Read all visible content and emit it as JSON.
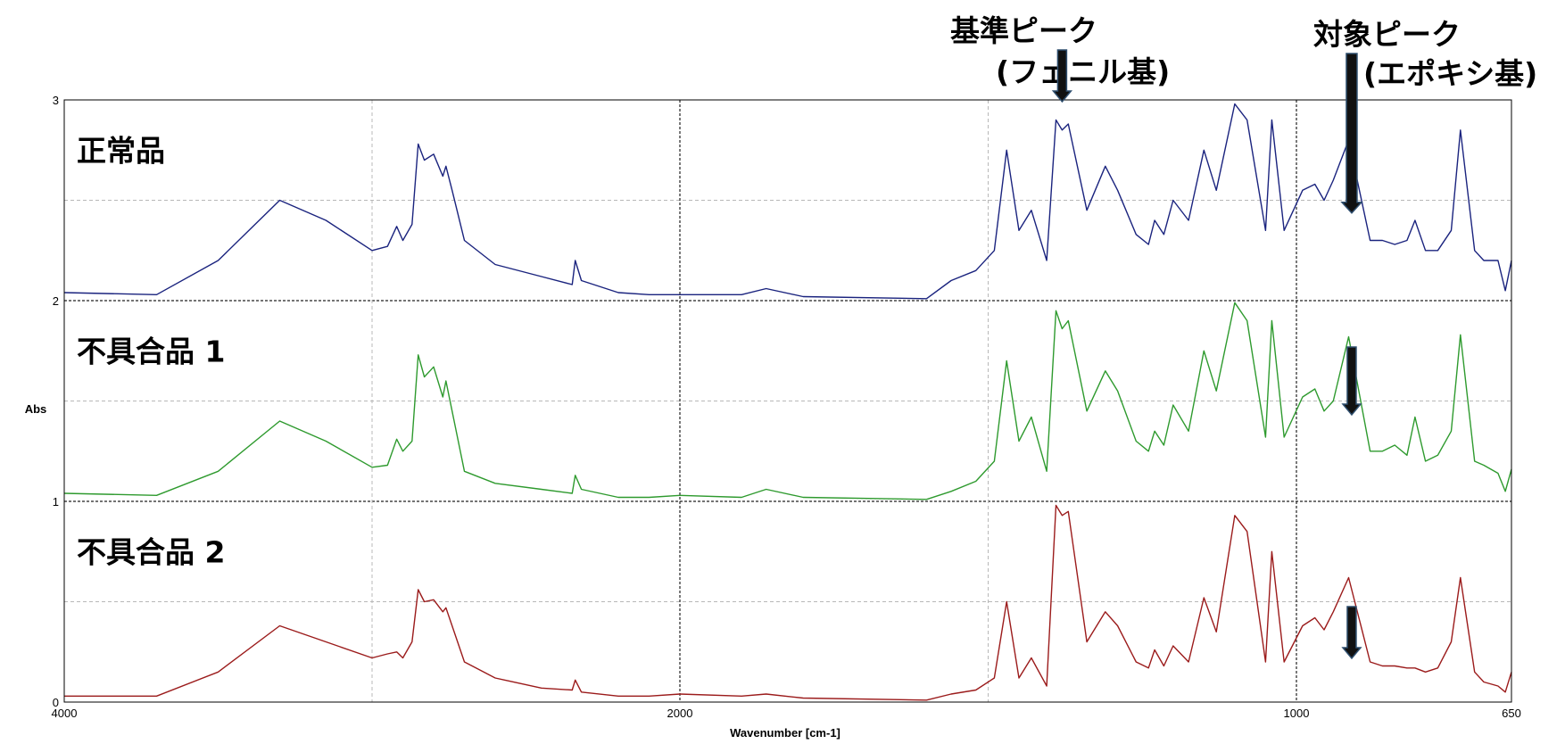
{
  "chart_data": {
    "type": "line",
    "title": "",
    "xlabel": "Wavenumber [cm-1]",
    "ylabel": "Abs",
    "xlim": [
      4000,
      650
    ],
    "ylim": [
      0,
      3
    ],
    "x_reversed": true,
    "x_ticks": [
      "4000",
      "2000",
      "1000",
      "650"
    ],
    "y_ticks": [
      "0",
      "1",
      "2",
      "3"
    ],
    "grid": true,
    "series": [
      {
        "name": "正常品",
        "color": "#1a237e",
        "points": [
          [
            4000,
            2.04
          ],
          [
            3700,
            2.03
          ],
          [
            3500,
            2.2
          ],
          [
            3300,
            2.5
          ],
          [
            3150,
            2.4
          ],
          [
            3000,
            2.25
          ],
          [
            2950,
            2.27
          ],
          [
            2920,
            2.37
          ],
          [
            2900,
            2.3
          ],
          [
            2870,
            2.38
          ],
          [
            2850,
            2.78
          ],
          [
            2830,
            2.7
          ],
          [
            2800,
            2.73
          ],
          [
            2770,
            2.62
          ],
          [
            2760,
            2.67
          ],
          [
            2740,
            2.55
          ],
          [
            2700,
            2.3
          ],
          [
            2600,
            2.18
          ],
          [
            2450,
            2.12
          ],
          [
            2350,
            2.08
          ],
          [
            2340,
            2.2
          ],
          [
            2320,
            2.1
          ],
          [
            2200,
            2.04
          ],
          [
            2100,
            2.03
          ],
          [
            2000,
            2.03
          ],
          [
            1900,
            2.03
          ],
          [
            1860,
            2.06
          ],
          [
            1800,
            2.02
          ],
          [
            1600,
            2.01
          ],
          [
            1560,
            2.1
          ],
          [
            1520,
            2.15
          ],
          [
            1490,
            2.25
          ],
          [
            1470,
            2.75
          ],
          [
            1450,
            2.35
          ],
          [
            1430,
            2.45
          ],
          [
            1405,
            2.2
          ],
          [
            1390,
            2.9
          ],
          [
            1380,
            2.85
          ],
          [
            1370,
            2.88
          ],
          [
            1340,
            2.45
          ],
          [
            1310,
            2.67
          ],
          [
            1290,
            2.55
          ],
          [
            1260,
            2.33
          ],
          [
            1240,
            2.28
          ],
          [
            1230,
            2.4
          ],
          [
            1215,
            2.33
          ],
          [
            1200,
            2.5
          ],
          [
            1175,
            2.4
          ],
          [
            1150,
            2.75
          ],
          [
            1130,
            2.55
          ],
          [
            1100,
            2.98
          ],
          [
            1080,
            2.9
          ],
          [
            1050,
            2.35
          ],
          [
            1040,
            2.9
          ],
          [
            1020,
            2.35
          ],
          [
            990,
            2.55
          ],
          [
            970,
            2.58
          ],
          [
            955,
            2.5
          ],
          [
            940,
            2.6
          ],
          [
            915,
            2.8
          ],
          [
            880,
            2.3
          ],
          [
            860,
            2.3
          ],
          [
            840,
            2.28
          ],
          [
            820,
            2.3
          ],
          [
            807,
            2.4
          ],
          [
            790,
            2.25
          ],
          [
            770,
            2.25
          ],
          [
            748,
            2.35
          ],
          [
            733,
            2.85
          ],
          [
            710,
            2.25
          ],
          [
            695,
            2.2
          ],
          [
            672,
            2.2
          ],
          [
            660,
            2.05
          ],
          [
            650,
            2.2
          ]
        ]
      },
      {
        "name": "不具合品 1",
        "color": "#2e9a2e",
        "points": [
          [
            4000,
            1.04
          ],
          [
            3700,
            1.03
          ],
          [
            3500,
            1.15
          ],
          [
            3300,
            1.4
          ],
          [
            3150,
            1.3
          ],
          [
            3000,
            1.17
          ],
          [
            2950,
            1.18
          ],
          [
            2920,
            1.31
          ],
          [
            2900,
            1.25
          ],
          [
            2870,
            1.3
          ],
          [
            2850,
            1.73
          ],
          [
            2830,
            1.62
          ],
          [
            2800,
            1.67
          ],
          [
            2770,
            1.52
          ],
          [
            2760,
            1.6
          ],
          [
            2740,
            1.45
          ],
          [
            2700,
            1.15
          ],
          [
            2600,
            1.09
          ],
          [
            2450,
            1.06
          ],
          [
            2350,
            1.04
          ],
          [
            2340,
            1.13
          ],
          [
            2320,
            1.06
          ],
          [
            2200,
            1.02
          ],
          [
            2100,
            1.02
          ],
          [
            2000,
            1.03
          ],
          [
            1900,
            1.02
          ],
          [
            1860,
            1.06
          ],
          [
            1800,
            1.02
          ],
          [
            1600,
            1.01
          ],
          [
            1560,
            1.05
          ],
          [
            1520,
            1.1
          ],
          [
            1490,
            1.2
          ],
          [
            1470,
            1.7
          ],
          [
            1450,
            1.3
          ],
          [
            1430,
            1.42
          ],
          [
            1405,
            1.15
          ],
          [
            1390,
            1.95
          ],
          [
            1380,
            1.86
          ],
          [
            1370,
            1.9
          ],
          [
            1340,
            1.45
          ],
          [
            1310,
            1.65
          ],
          [
            1290,
            1.55
          ],
          [
            1260,
            1.3
          ],
          [
            1240,
            1.25
          ],
          [
            1230,
            1.35
          ],
          [
            1215,
            1.28
          ],
          [
            1200,
            1.48
          ],
          [
            1175,
            1.35
          ],
          [
            1150,
            1.75
          ],
          [
            1130,
            1.55
          ],
          [
            1100,
            1.99
          ],
          [
            1080,
            1.9
          ],
          [
            1050,
            1.32
          ],
          [
            1040,
            1.9
          ],
          [
            1020,
            1.32
          ],
          [
            990,
            1.52
          ],
          [
            970,
            1.56
          ],
          [
            955,
            1.45
          ],
          [
            940,
            1.5
          ],
          [
            915,
            1.82
          ],
          [
            880,
            1.25
          ],
          [
            860,
            1.25
          ],
          [
            840,
            1.28
          ],
          [
            820,
            1.23
          ],
          [
            807,
            1.42
          ],
          [
            790,
            1.2
          ],
          [
            770,
            1.23
          ],
          [
            748,
            1.35
          ],
          [
            733,
            1.83
          ],
          [
            710,
            1.2
          ],
          [
            695,
            1.18
          ],
          [
            672,
            1.14
          ],
          [
            660,
            1.05
          ],
          [
            650,
            1.16
          ]
        ]
      },
      {
        "name": "不具合品 2",
        "color": "#9b1b1b",
        "points": [
          [
            4000,
            0.03
          ],
          [
            3700,
            0.03
          ],
          [
            3500,
            0.15
          ],
          [
            3300,
            0.38
          ],
          [
            3150,
            0.3
          ],
          [
            3000,
            0.22
          ],
          [
            2950,
            0.24
          ],
          [
            2920,
            0.25
          ],
          [
            2900,
            0.22
          ],
          [
            2870,
            0.3
          ],
          [
            2850,
            0.56
          ],
          [
            2830,
            0.5
          ],
          [
            2800,
            0.51
          ],
          [
            2770,
            0.45
          ],
          [
            2760,
            0.47
          ],
          [
            2740,
            0.38
          ],
          [
            2700,
            0.2
          ],
          [
            2600,
            0.12
          ],
          [
            2450,
            0.07
          ],
          [
            2350,
            0.06
          ],
          [
            2340,
            0.11
          ],
          [
            2320,
            0.05
          ],
          [
            2200,
            0.03
          ],
          [
            2100,
            0.03
          ],
          [
            2000,
            0.04
          ],
          [
            1900,
            0.03
          ],
          [
            1860,
            0.04
          ],
          [
            1800,
            0.02
          ],
          [
            1600,
            0.01
          ],
          [
            1560,
            0.04
          ],
          [
            1520,
            0.06
          ],
          [
            1490,
            0.12
          ],
          [
            1470,
            0.5
          ],
          [
            1450,
            0.12
          ],
          [
            1430,
            0.22
          ],
          [
            1405,
            0.08
          ],
          [
            1390,
            0.98
          ],
          [
            1380,
            0.93
          ],
          [
            1370,
            0.95
          ],
          [
            1340,
            0.3
          ],
          [
            1310,
            0.45
          ],
          [
            1290,
            0.38
          ],
          [
            1260,
            0.2
          ],
          [
            1240,
            0.17
          ],
          [
            1230,
            0.26
          ],
          [
            1215,
            0.18
          ],
          [
            1200,
            0.28
          ],
          [
            1175,
            0.2
          ],
          [
            1150,
            0.52
          ],
          [
            1130,
            0.35
          ],
          [
            1100,
            0.93
          ],
          [
            1080,
            0.85
          ],
          [
            1050,
            0.2
          ],
          [
            1040,
            0.75
          ],
          [
            1020,
            0.2
          ],
          [
            990,
            0.38
          ],
          [
            970,
            0.42
          ],
          [
            955,
            0.36
          ],
          [
            940,
            0.45
          ],
          [
            915,
            0.62
          ],
          [
            880,
            0.2
          ],
          [
            860,
            0.18
          ],
          [
            840,
            0.18
          ],
          [
            820,
            0.17
          ],
          [
            807,
            0.17
          ],
          [
            790,
            0.15
          ],
          [
            770,
            0.17
          ],
          [
            748,
            0.3
          ],
          [
            733,
            0.62
          ],
          [
            710,
            0.15
          ],
          [
            695,
            0.1
          ],
          [
            672,
            0.08
          ],
          [
            660,
            0.05
          ],
          [
            650,
            0.15
          ]
        ]
      }
    ],
    "annotations": {
      "reference_peak": {
        "line1": "基準ピーク",
        "line2": "(フェニル基)",
        "x": 1380,
        "y": 3.0
      },
      "target_peak": {
        "line1": "対象ピーク",
        "line2": "(エポキシ基)",
        "x": 910
      },
      "arrow_targets": [
        {
          "x": 910,
          "y": 2.45
        },
        {
          "x": 910,
          "y": 1.44
        },
        {
          "x": 910,
          "y": 0.2
        }
      ]
    }
  }
}
